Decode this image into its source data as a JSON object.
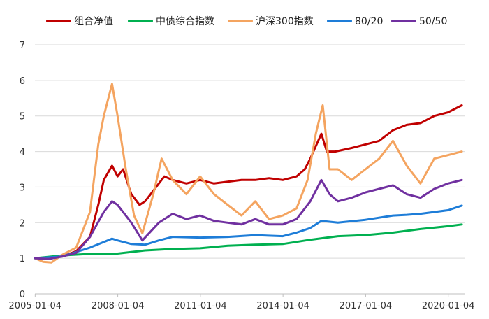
{
  "chart_data": {
    "type": "line",
    "title": "",
    "xlabel": "",
    "ylabel": "",
    "x_tick_labels": [
      "2005-01-04",
      "2008-01-04",
      "2011-01-04",
      "2014-01-04",
      "2017-01-04",
      "2020-01-04"
    ],
    "x_range": [
      2005.0,
      2020.6
    ],
    "ylim": [
      0,
      7
    ],
    "y_ticks": [
      0,
      1,
      2,
      3,
      4,
      5,
      6,
      7
    ],
    "grid": true,
    "legend_position": "top",
    "series": [
      {
        "name": "组合净值",
        "color": "#c00000",
        "x": [
          2005.0,
          2005.5,
          2006.0,
          2006.5,
          2007.0,
          2007.3,
          2007.5,
          2007.8,
          2008.0,
          2008.2,
          2008.5,
          2008.8,
          2009.0,
          2009.5,
          2009.7,
          2010.0,
          2010.5,
          2011.0,
          2011.5,
          2012.0,
          2012.5,
          2013.0,
          2013.5,
          2014.0,
          2014.5,
          2014.8,
          2015.0,
          2015.4,
          2015.6,
          2015.9,
          2016.5,
          2017.0,
          2017.5,
          2018.0,
          2018.5,
          2019.0,
          2019.5,
          2020.0,
          2020.5
        ],
        "values": [
          1.0,
          1.02,
          1.05,
          1.2,
          1.6,
          2.5,
          3.2,
          3.6,
          3.3,
          3.5,
          2.8,
          2.5,
          2.6,
          3.1,
          3.3,
          3.2,
          3.1,
          3.2,
          3.1,
          3.15,
          3.2,
          3.2,
          3.25,
          3.2,
          3.3,
          3.5,
          3.8,
          4.5,
          4.0,
          4.0,
          4.1,
          4.2,
          4.3,
          4.6,
          4.75,
          4.8,
          5.0,
          5.1,
          5.3
        ]
      },
      {
        "name": "中债综合指数",
        "color": "#00b050",
        "x": [
          2005.0,
          2006.0,
          2007.0,
          2008.0,
          2009.0,
          2010.0,
          2011.0,
          2012.0,
          2013.0,
          2014.0,
          2015.0,
          2016.0,
          2017.0,
          2018.0,
          2019.0,
          2020.0,
          2020.5
        ],
        "values": [
          1.0,
          1.08,
          1.12,
          1.13,
          1.22,
          1.26,
          1.28,
          1.35,
          1.38,
          1.4,
          1.52,
          1.62,
          1.65,
          1.72,
          1.82,
          1.9,
          1.95
        ]
      },
      {
        "name": "沪深300指数",
        "color": "#f4a460",
        "x": [
          2005.0,
          2005.3,
          2005.6,
          2006.0,
          2006.5,
          2007.0,
          2007.3,
          2007.5,
          2007.8,
          2008.0,
          2008.3,
          2008.6,
          2008.9,
          2009.3,
          2009.6,
          2010.0,
          2010.5,
          2011.0,
          2011.5,
          2012.0,
          2012.5,
          2013.0,
          2013.5,
          2014.0,
          2014.5,
          2014.9,
          2015.2,
          2015.45,
          2015.7,
          2016.0,
          2016.5,
          2017.0,
          2017.5,
          2018.0,
          2018.5,
          2019.0,
          2019.5,
          2020.0,
          2020.5
        ],
        "values": [
          1.0,
          0.9,
          0.88,
          1.1,
          1.3,
          2.3,
          4.2,
          5.0,
          5.9,
          5.0,
          3.5,
          2.2,
          1.7,
          2.8,
          3.8,
          3.2,
          2.8,
          3.3,
          2.8,
          2.5,
          2.2,
          2.6,
          2.1,
          2.2,
          2.4,
          3.2,
          4.5,
          5.3,
          3.5,
          3.5,
          3.2,
          3.5,
          3.8,
          4.3,
          3.6,
          3.1,
          3.8,
          3.9,
          4.0
        ]
      },
      {
        "name": "80/20",
        "color": "#1e7dd8",
        "x": [
          2005.0,
          2006.0,
          2007.0,
          2007.8,
          2008.0,
          2008.5,
          2009.0,
          2009.5,
          2010.0,
          2011.0,
          2012.0,
          2013.0,
          2014.0,
          2014.5,
          2015.0,
          2015.4,
          2016.0,
          2017.0,
          2018.0,
          2018.5,
          2019.0,
          2020.0,
          2020.5
        ],
        "values": [
          1.0,
          1.05,
          1.3,
          1.55,
          1.5,
          1.4,
          1.38,
          1.5,
          1.6,
          1.58,
          1.6,
          1.65,
          1.62,
          1.72,
          1.85,
          2.05,
          2.0,
          2.08,
          2.2,
          2.22,
          2.25,
          2.35,
          2.48
        ]
      },
      {
        "name": "50/50",
        "color": "#7030a0",
        "x": [
          2005.0,
          2005.5,
          2006.0,
          2006.5,
          2007.0,
          2007.5,
          2007.8,
          2008.0,
          2008.5,
          2008.9,
          2009.5,
          2010.0,
          2010.5,
          2011.0,
          2011.5,
          2012.0,
          2012.5,
          2013.0,
          2013.5,
          2014.0,
          2014.5,
          2015.0,
          2015.4,
          2015.7,
          2016.0,
          2016.5,
          2017.0,
          2017.5,
          2018.0,
          2018.5,
          2019.0,
          2019.5,
          2020.0,
          2020.5
        ],
        "values": [
          1.0,
          0.98,
          1.05,
          1.15,
          1.6,
          2.3,
          2.6,
          2.5,
          2.0,
          1.5,
          2.0,
          2.25,
          2.1,
          2.2,
          2.05,
          2.0,
          1.95,
          2.1,
          1.95,
          1.95,
          2.1,
          2.6,
          3.2,
          2.8,
          2.6,
          2.7,
          2.85,
          2.95,
          3.05,
          2.8,
          2.7,
          2.95,
          3.1,
          3.2
        ]
      }
    ]
  }
}
